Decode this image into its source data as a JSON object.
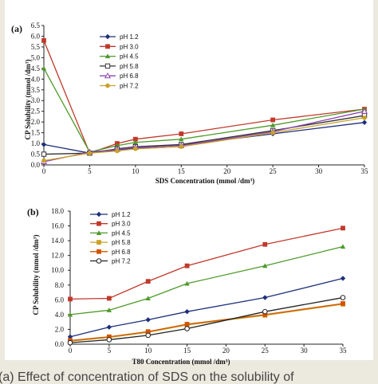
{
  "caption": "(a) Effect of concentration of SDS on the solubility of",
  "chart_data": [
    {
      "panel": "(a)",
      "type": "line",
      "xlabel": "SDS Concentration (mmol /dm³)",
      "ylabel": "CP Solubility (mmol /dm³)",
      "xlim": [
        0,
        35
      ],
      "ylim": [
        0,
        6.5
      ],
      "xticks": [
        0,
        5,
        10,
        15,
        20,
        25,
        30,
        35
      ],
      "yticks": [
        0.0,
        0.5,
        1.0,
        1.5,
        2.0,
        2.5,
        3.0,
        3.5,
        4.0,
        4.5,
        5.0,
        5.5,
        6.0,
        6.5
      ],
      "ytick_decimals": 1,
      "grid": false,
      "legend_position": "top-right",
      "series": [
        {
          "name": "pH 1.2",
          "color": "#1f2f7a",
          "marker": "diamond",
          "x": [
            0,
            5,
            8,
            10,
            15,
            25,
            35
          ],
          "y": [
            0.95,
            0.55,
            0.7,
            0.78,
            0.92,
            1.45,
            1.98
          ]
        },
        {
          "name": "pH 3.0",
          "color": "#c0392b",
          "marker": "square",
          "x": [
            0,
            5,
            8,
            10,
            15,
            25,
            35
          ],
          "y": [
            5.8,
            0.55,
            1.0,
            1.2,
            1.45,
            2.1,
            2.6
          ]
        },
        {
          "name": "pH 4.5",
          "color": "#4e9a2a",
          "marker": "triangle",
          "x": [
            0,
            5,
            8,
            10,
            15,
            25,
            35
          ],
          "y": [
            4.5,
            0.6,
            0.9,
            1.05,
            1.2,
            1.85,
            2.6
          ]
        },
        {
          "name": "pH 5.8",
          "color": "#333333",
          "marker": "square-open",
          "x": [
            0,
            5,
            8,
            10,
            15,
            25,
            35
          ],
          "y": [
            0.5,
            0.55,
            0.75,
            0.85,
            0.95,
            1.6,
            2.3
          ]
        },
        {
          "name": "pH 6.8",
          "color": "#8e44ad",
          "marker": "triangle-open",
          "x": [
            0,
            5,
            8,
            10,
            15,
            25,
            35
          ],
          "y": [
            0.15,
            0.6,
            0.72,
            0.82,
            0.9,
            1.55,
            2.5
          ]
        },
        {
          "name": "pH 7.2",
          "color": "#c9a227",
          "marker": "circle",
          "x": [
            0,
            5,
            8,
            10,
            15,
            25,
            35
          ],
          "y": [
            0.2,
            0.55,
            0.65,
            0.75,
            0.85,
            1.5,
            2.2
          ]
        }
      ]
    },
    {
      "panel": "(b)",
      "type": "line",
      "xlabel": "T80 Concentration (mmol /dm³)",
      "ylabel": "CP Solubility (mmol /dm³)",
      "xlim": [
        0,
        35
      ],
      "ylim": [
        0,
        18
      ],
      "xticks": [
        0,
        5,
        10,
        15,
        20,
        25,
        30,
        35
      ],
      "yticks": [
        0.0,
        2.0,
        4.0,
        6.0,
        8.0,
        10.0,
        12.0,
        14.0,
        16.0,
        18.0
      ],
      "ytick_decimals": 1,
      "grid": false,
      "legend_position": "top-left",
      "series": [
        {
          "name": "pH 1.2",
          "color": "#1f2f7a",
          "marker": "diamond",
          "x": [
            0,
            5,
            10,
            15,
            25,
            35
          ],
          "y": [
            1.0,
            2.3,
            3.3,
            4.4,
            6.3,
            8.9
          ]
        },
        {
          "name": "pH 3.0",
          "color": "#c0392b",
          "marker": "square",
          "x": [
            0,
            5,
            10,
            15,
            25,
            35
          ],
          "y": [
            6.1,
            6.2,
            8.5,
            10.6,
            13.5,
            15.7
          ]
        },
        {
          "name": "pH 4.5",
          "color": "#4e9a2a",
          "marker": "triangle",
          "x": [
            0,
            5,
            10,
            15,
            25,
            35
          ],
          "y": [
            4.0,
            4.6,
            6.2,
            8.2,
            10.6,
            13.2
          ]
        },
        {
          "name": "pH 5.8",
          "color": "#c9a227",
          "marker": "square",
          "x": [
            0,
            5,
            10,
            15,
            25,
            35
          ],
          "y": [
            0.4,
            0.9,
            1.6,
            2.6,
            3.9,
            5.4
          ]
        },
        {
          "name": "pH 6.8",
          "color": "#d35400",
          "marker": "square",
          "x": [
            0,
            5,
            10,
            15,
            25,
            35
          ],
          "y": [
            0.5,
            1.0,
            1.7,
            2.7,
            4.0,
            5.5
          ]
        },
        {
          "name": "pH 7.2",
          "color": "#222222",
          "marker": "circle-open",
          "x": [
            0,
            5,
            10,
            15,
            25,
            35
          ],
          "y": [
            0.2,
            0.6,
            1.2,
            2.1,
            4.4,
            6.3
          ]
        }
      ]
    }
  ]
}
